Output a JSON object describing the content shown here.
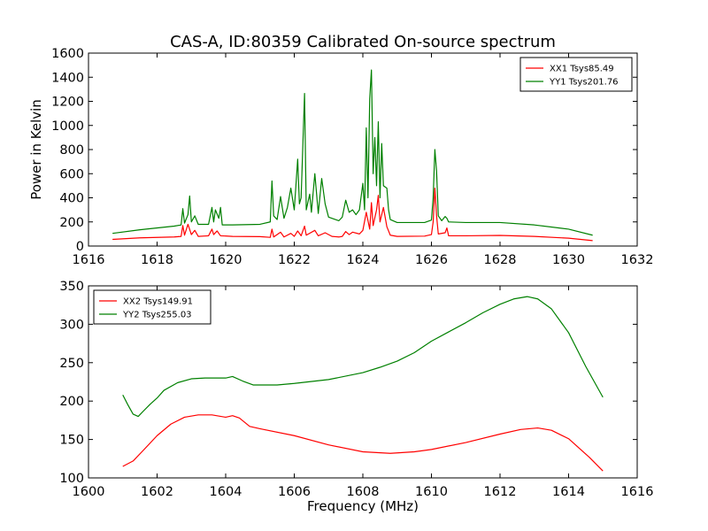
{
  "title": "CAS-A, ID:80359 Calibrated On-source spectrum",
  "chart_data": [
    {
      "type": "line",
      "panel": "top",
      "title": "",
      "xlabel": "",
      "ylabel": "Power in Kelvin",
      "xlim": [
        1616,
        1632
      ],
      "ylim": [
        0,
        1600
      ],
      "xticks": [
        1616,
        1618,
        1620,
        1622,
        1624,
        1626,
        1628,
        1630,
        1632
      ],
      "yticks": [
        0,
        200,
        400,
        600,
        800,
        1000,
        1200,
        1400,
        1600
      ],
      "grid": false,
      "legend_position": "top-right",
      "series": [
        {
          "name": "XX1 Tsys85.49",
          "color": "#ff0000",
          "points": [
            [
              1616.7,
              55
            ],
            [
              1617.5,
              68
            ],
            [
              1618.5,
              75
            ],
            [
              1618.7,
              80
            ],
            [
              1618.75,
              170
            ],
            [
              1618.8,
              90
            ],
            [
              1618.9,
              180
            ],
            [
              1619.0,
              95
            ],
            [
              1619.1,
              130
            ],
            [
              1619.2,
              80
            ],
            [
              1619.5,
              85
            ],
            [
              1619.6,
              140
            ],
            [
              1619.65,
              95
            ],
            [
              1619.75,
              125
            ],
            [
              1619.85,
              85
            ],
            [
              1620.2,
              80
            ],
            [
              1621.0,
              78
            ],
            [
              1621.3,
              72
            ],
            [
              1621.35,
              140
            ],
            [
              1621.4,
              75
            ],
            [
              1621.6,
              115
            ],
            [
              1621.7,
              75
            ],
            [
              1621.9,
              105
            ],
            [
              1622.0,
              80
            ],
            [
              1622.1,
              125
            ],
            [
              1622.2,
              85
            ],
            [
              1622.3,
              165
            ],
            [
              1622.35,
              90
            ],
            [
              1622.6,
              130
            ],
            [
              1622.7,
              85
            ],
            [
              1622.9,
              110
            ],
            [
              1623.1,
              80
            ],
            [
              1623.3,
              75
            ],
            [
              1623.4,
              80
            ],
            [
              1623.5,
              120
            ],
            [
              1623.6,
              95
            ],
            [
              1623.7,
              115
            ],
            [
              1623.9,
              100
            ],
            [
              1624.0,
              130
            ],
            [
              1624.1,
              280
            ],
            [
              1624.2,
              140
            ],
            [
              1624.25,
              360
            ],
            [
              1624.3,
              170
            ],
            [
              1624.4,
              300
            ],
            [
              1624.45,
              420
            ],
            [
              1624.5,
              200
            ],
            [
              1624.6,
              320
            ],
            [
              1624.7,
              160
            ],
            [
              1624.8,
              90
            ],
            [
              1625.0,
              80
            ],
            [
              1625.8,
              82
            ],
            [
              1626.0,
              95
            ],
            [
              1626.05,
              200
            ],
            [
              1626.1,
              480
            ],
            [
              1626.15,
              250
            ],
            [
              1626.2,
              100
            ],
            [
              1626.4,
              110
            ],
            [
              1626.45,
              150
            ],
            [
              1626.5,
              85
            ],
            [
              1627.0,
              85
            ],
            [
              1628.0,
              88
            ],
            [
              1629.0,
              80
            ],
            [
              1630.0,
              65
            ],
            [
              1630.7,
              45
            ]
          ]
        },
        {
          "name": "YY1 Tsys201.76",
          "color": "#008000",
          "points": [
            [
              1616.7,
              105
            ],
            [
              1617.5,
              135
            ],
            [
              1618.5,
              165
            ],
            [
              1618.7,
              175
            ],
            [
              1618.75,
              310
            ],
            [
              1618.8,
              190
            ],
            [
              1618.9,
              260
            ],
            [
              1618.95,
              415
            ],
            [
              1619.0,
              200
            ],
            [
              1619.1,
              250
            ],
            [
              1619.2,
              180
            ],
            [
              1619.5,
              180
            ],
            [
              1619.6,
              320
            ],
            [
              1619.65,
              200
            ],
            [
              1619.7,
              300
            ],
            [
              1619.8,
              230
            ],
            [
              1619.85,
              320
            ],
            [
              1619.9,
              175
            ],
            [
              1620.2,
              175
            ],
            [
              1621.0,
              180
            ],
            [
              1621.3,
              200
            ],
            [
              1621.35,
              540
            ],
            [
              1621.4,
              250
            ],
            [
              1621.5,
              220
            ],
            [
              1621.6,
              410
            ],
            [
              1621.7,
              230
            ],
            [
              1621.8,
              320
            ],
            [
              1621.9,
              480
            ],
            [
              1622.0,
              300
            ],
            [
              1622.1,
              720
            ],
            [
              1622.15,
              350
            ],
            [
              1622.2,
              400
            ],
            [
              1622.3,
              1265
            ],
            [
              1622.35,
              300
            ],
            [
              1622.45,
              430
            ],
            [
              1622.5,
              280
            ],
            [
              1622.6,
              600
            ],
            [
              1622.7,
              270
            ],
            [
              1622.8,
              560
            ],
            [
              1622.9,
              350
            ],
            [
              1623.0,
              240
            ],
            [
              1623.3,
              210
            ],
            [
              1623.4,
              240
            ],
            [
              1623.5,
              380
            ],
            [
              1623.6,
              280
            ],
            [
              1623.7,
              300
            ],
            [
              1623.8,
              260
            ],
            [
              1623.9,
              300
            ],
            [
              1624.0,
              520
            ],
            [
              1624.05,
              300
            ],
            [
              1624.1,
              980
            ],
            [
              1624.15,
              400
            ],
            [
              1624.2,
              1220
            ],
            [
              1624.25,
              1460
            ],
            [
              1624.3,
              600
            ],
            [
              1624.35,
              900
            ],
            [
              1624.4,
              500
            ],
            [
              1624.45,
              1030
            ],
            [
              1624.5,
              400
            ],
            [
              1624.55,
              850
            ],
            [
              1624.6,
              500
            ],
            [
              1624.7,
              480
            ],
            [
              1624.75,
              300
            ],
            [
              1624.8,
              220
            ],
            [
              1625.0,
              195
            ],
            [
              1625.8,
              195
            ],
            [
              1626.0,
              215
            ],
            [
              1626.05,
              400
            ],
            [
              1626.1,
              800
            ],
            [
              1626.15,
              620
            ],
            [
              1626.2,
              250
            ],
            [
              1626.3,
              210
            ],
            [
              1626.4,
              245
            ],
            [
              1626.45,
              230
            ],
            [
              1626.5,
              200
            ],
            [
              1627.0,
              195
            ],
            [
              1628.0,
              195
            ],
            [
              1629.0,
              175
            ],
            [
              1630.0,
              140
            ],
            [
              1630.7,
              90
            ]
          ]
        }
      ]
    },
    {
      "type": "line",
      "panel": "bottom",
      "title": "",
      "xlabel": "Frequency (MHz)",
      "ylabel": "",
      "xlim": [
        1600,
        1616
      ],
      "ylim": [
        100,
        350
      ],
      "xticks": [
        1600,
        1602,
        1604,
        1606,
        1608,
        1610,
        1612,
        1614,
        1616
      ],
      "yticks": [
        100,
        150,
        200,
        250,
        300,
        350
      ],
      "grid": false,
      "legend_position": "top-left",
      "series": [
        {
          "name": "XX2 Tsys149.91",
          "color": "#ff0000",
          "points": [
            [
              1601.0,
              115
            ],
            [
              1601.3,
              122
            ],
            [
              1601.6,
              136
            ],
            [
              1602.0,
              155
            ],
            [
              1602.4,
              170
            ],
            [
              1602.8,
              179
            ],
            [
              1603.2,
              182
            ],
            [
              1603.6,
              182
            ],
            [
              1604.0,
              179
            ],
            [
              1604.2,
              181
            ],
            [
              1604.4,
              178
            ],
            [
              1604.7,
              167
            ],
            [
              1605.0,
              164
            ],
            [
              1606.0,
              155
            ],
            [
              1607.0,
              143
            ],
            [
              1608.0,
              134
            ],
            [
              1608.8,
              132
            ],
            [
              1609.5,
              134
            ],
            [
              1610.0,
              137
            ],
            [
              1611.0,
              146
            ],
            [
              1612.0,
              157
            ],
            [
              1612.6,
              163
            ],
            [
              1613.1,
              165
            ],
            [
              1613.5,
              162
            ],
            [
              1614.0,
              151
            ],
            [
              1614.6,
              127
            ],
            [
              1615.0,
              109
            ]
          ]
        },
        {
          "name": "YY2 Tsys255.03",
          "color": "#008000",
          "points": [
            [
              1601.0,
              208
            ],
            [
              1601.15,
              195
            ],
            [
              1601.3,
              183
            ],
            [
              1601.45,
              180
            ],
            [
              1601.6,
              187
            ],
            [
              1601.8,
              196
            ],
            [
              1602.0,
              204
            ],
            [
              1602.2,
              214
            ],
            [
              1602.6,
              224
            ],
            [
              1603.0,
              229
            ],
            [
              1603.4,
              230
            ],
            [
              1604.0,
              230
            ],
            [
              1604.2,
              232
            ],
            [
              1604.5,
              226
            ],
            [
              1604.8,
              221
            ],
            [
              1605.5,
              221
            ],
            [
              1606.0,
              223
            ],
            [
              1607.0,
              228
            ],
            [
              1608.0,
              237
            ],
            [
              1608.5,
              244
            ],
            [
              1609.0,
              252
            ],
            [
              1609.5,
              263
            ],
            [
              1610.0,
              278
            ],
            [
              1610.5,
              290
            ],
            [
              1611.0,
              302
            ],
            [
              1611.5,
              315
            ],
            [
              1612.0,
              326
            ],
            [
              1612.4,
              333
            ],
            [
              1612.8,
              336
            ],
            [
              1613.1,
              333
            ],
            [
              1613.5,
              320
            ],
            [
              1614.0,
              289
            ],
            [
              1614.5,
              245
            ],
            [
              1615.0,
              205
            ]
          ]
        }
      ]
    }
  ]
}
